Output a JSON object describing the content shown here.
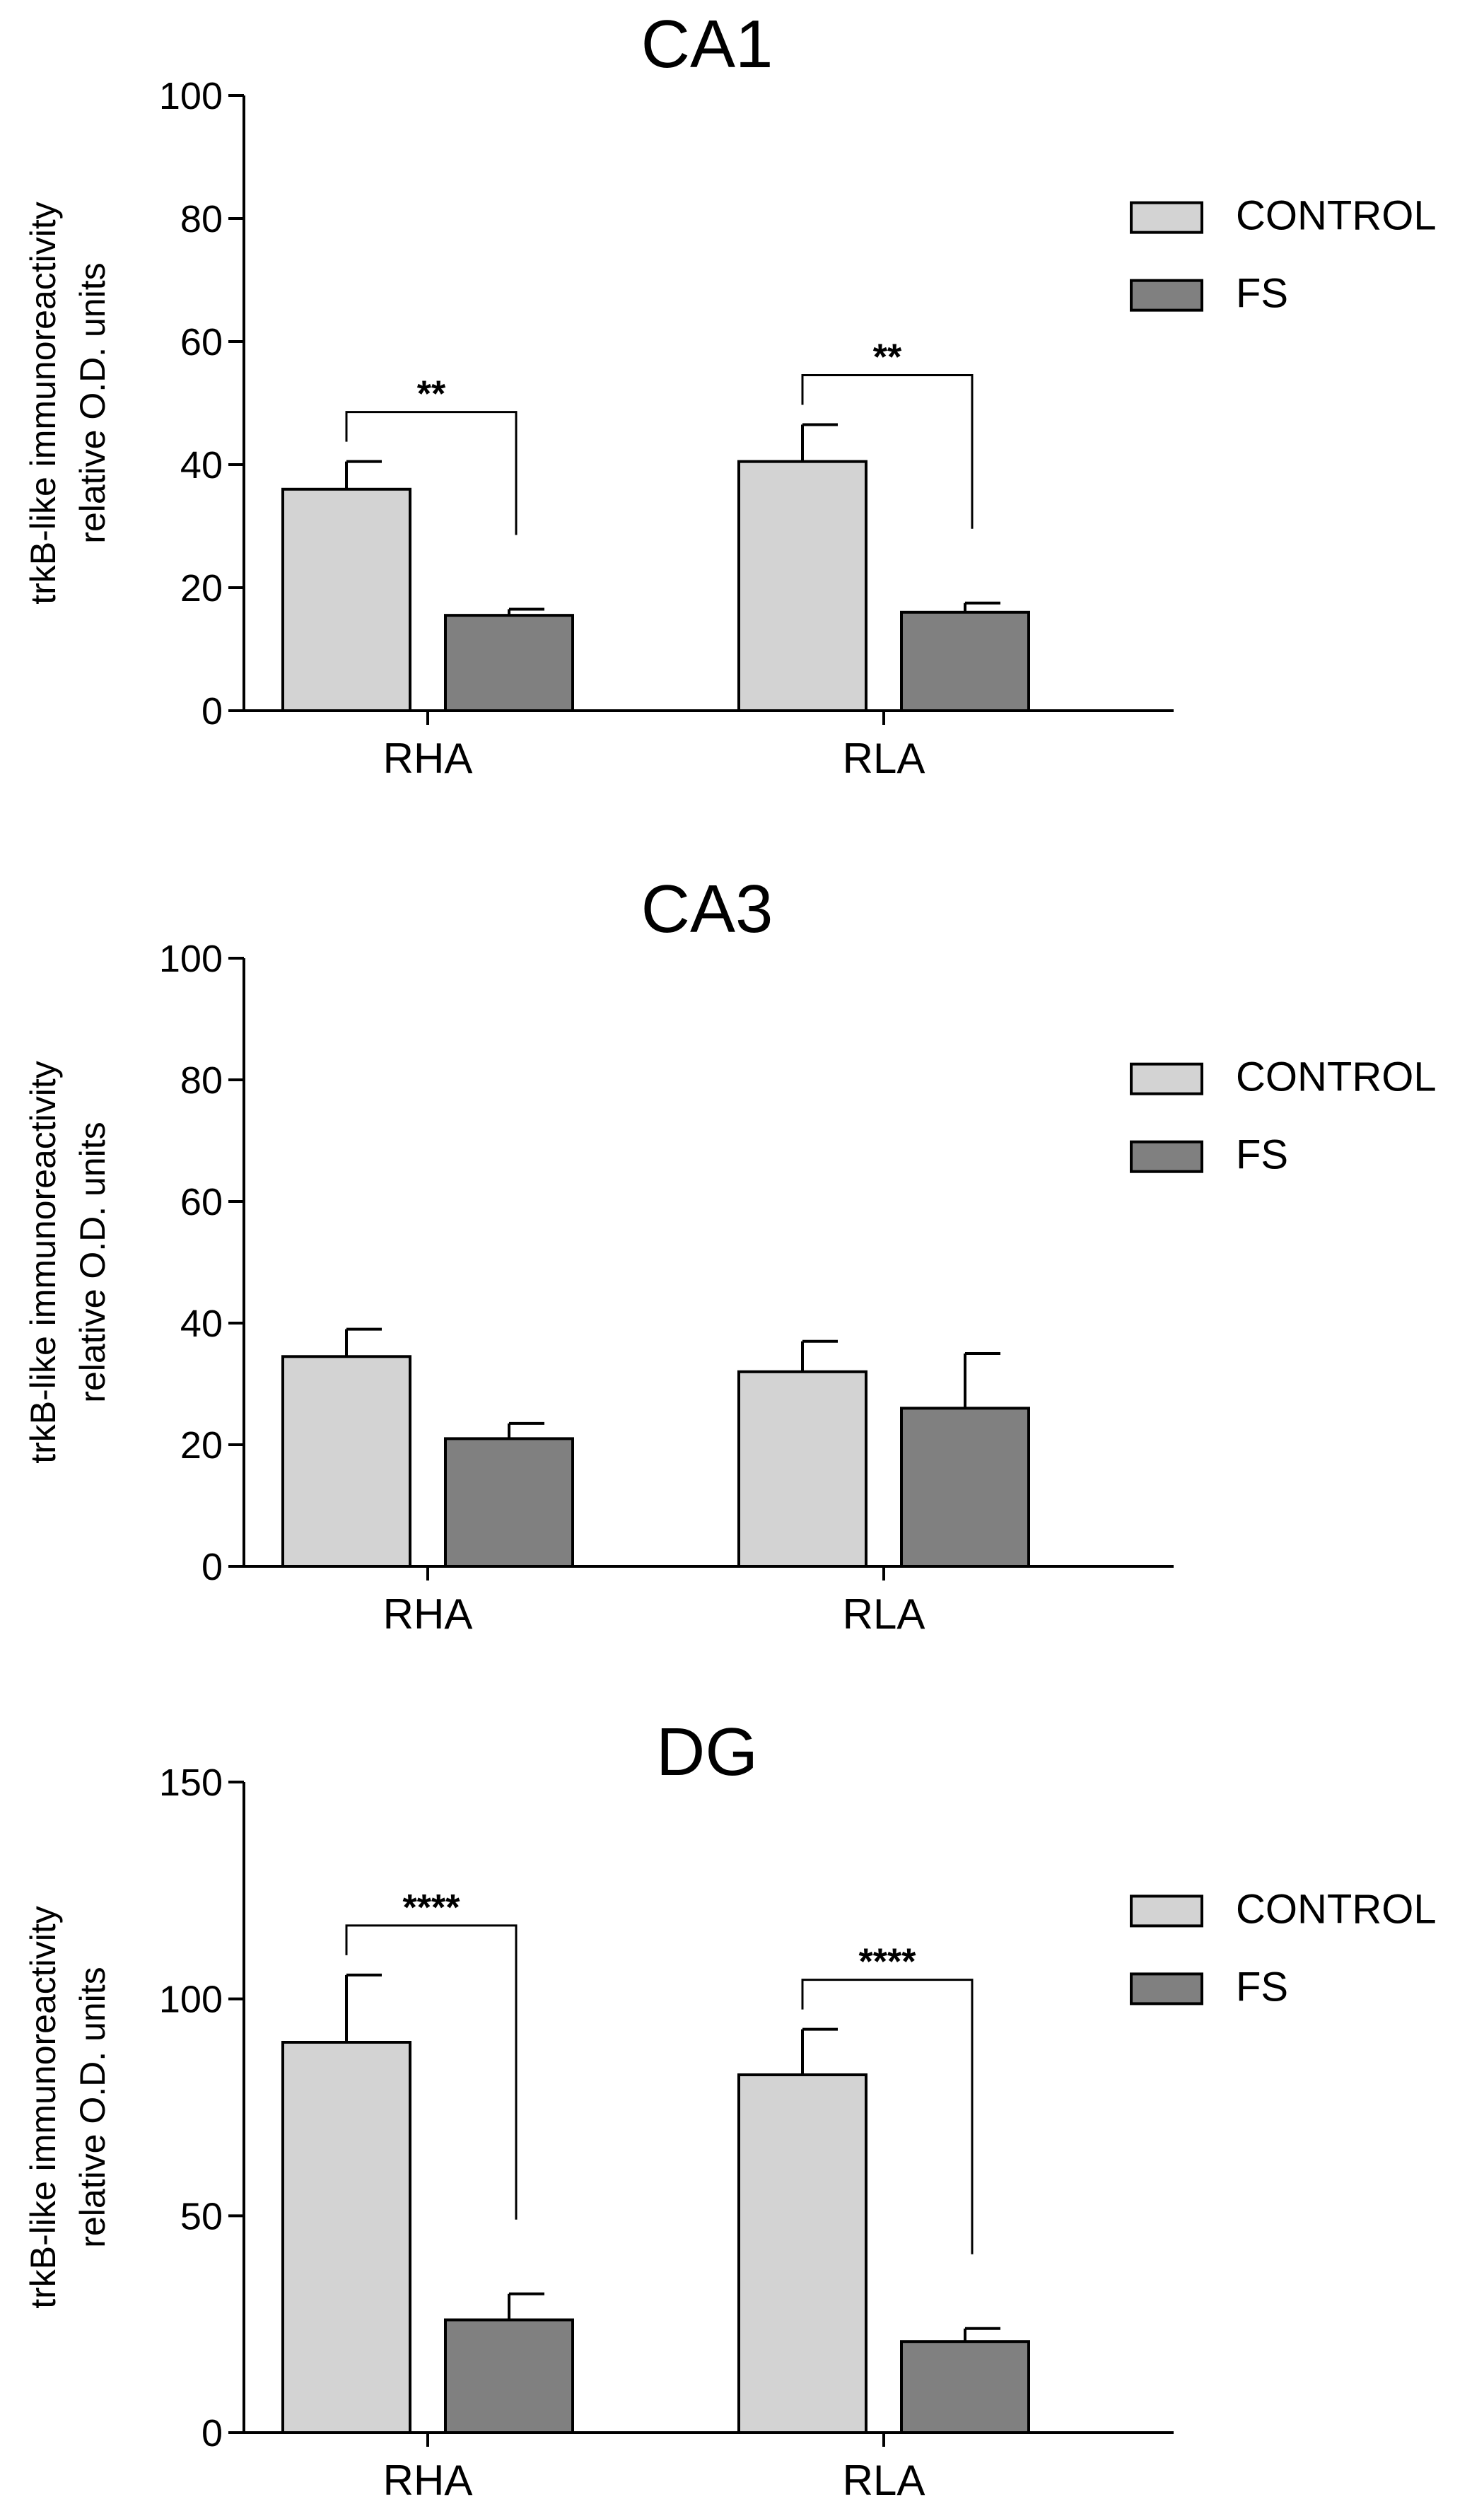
{
  "chart_data": [
    {
      "type": "bar",
      "title": "CA1",
      "ylabel": [
        "trkB-like immunoreactivity",
        "relative O.D. units"
      ],
      "xlabel": "",
      "categories": [
        "RHA",
        "RLA"
      ],
      "ylim": [
        0,
        100
      ],
      "yticks": [
        0,
        20,
        40,
        60,
        80,
        100
      ],
      "series": [
        {
          "name": "CONTROL",
          "color": "#d3d3d3",
          "values": [
            36,
            40.5
          ],
          "errors": [
            4.5,
            6
          ]
        },
        {
          "name": "FS",
          "color": "#808080",
          "values": [
            15.5,
            16
          ],
          "errors": [
            1,
            1.5
          ]
        }
      ],
      "significance": [
        {
          "category": "RHA",
          "label": "**"
        },
        {
          "category": "RLA",
          "label": "**"
        }
      ],
      "legend": "right"
    },
    {
      "type": "bar",
      "title": "CA3",
      "ylabel": [
        "trkB-like immunoreactivity",
        "relative O.D. units"
      ],
      "xlabel": "",
      "categories": [
        "RHA",
        "RLA"
      ],
      "ylim": [
        0,
        100
      ],
      "yticks": [
        0,
        20,
        40,
        60,
        80,
        100
      ],
      "series": [
        {
          "name": "CONTROL",
          "color": "#d3d3d3",
          "values": [
            34.5,
            32
          ],
          "errors": [
            4.5,
            5
          ]
        },
        {
          "name": "FS",
          "color": "#808080",
          "values": [
            21,
            26
          ],
          "errors": [
            2.5,
            9
          ]
        }
      ],
      "significance": [],
      "legend": "right"
    },
    {
      "type": "bar",
      "title": "DG",
      "ylabel": [
        "trkB-like immunoreactivity",
        "relative O.D. units"
      ],
      "xlabel": "",
      "categories": [
        "RHA",
        "RLA"
      ],
      "ylim": [
        0,
        150
      ],
      "yticks": [
        0,
        50,
        100,
        150
      ],
      "series": [
        {
          "name": "CONTROL",
          "color": "#d3d3d3",
          "values": [
            90,
            82.5
          ],
          "errors": [
            15.5,
            10.5
          ]
        },
        {
          "name": "FS",
          "color": "#808080",
          "values": [
            26,
            21
          ],
          "errors": [
            6,
            3
          ]
        }
      ],
      "significance": [
        {
          "category": "RHA",
          "label": "****"
        },
        {
          "category": "RLA",
          "label": "****"
        }
      ],
      "legend": "right"
    }
  ]
}
